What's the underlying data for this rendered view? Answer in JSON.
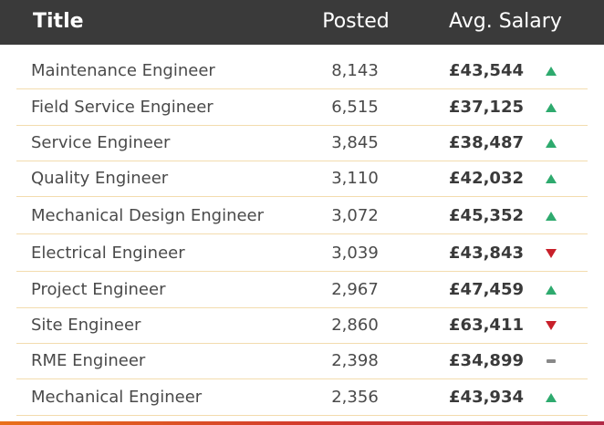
{
  "header": {
    "title": "Title",
    "posted": "Posted",
    "salary": "Avg. Salary"
  },
  "colors": {
    "up": "#2eaa6e",
    "down": "#c8202a",
    "flat": "#888888"
  },
  "rows": [
    {
      "title": "Maintenance Engineer",
      "posted": "8,143",
      "salary": "£43,544",
      "trend": "up"
    },
    {
      "title": "Field Service Engineer",
      "posted": "6,515",
      "salary": "£37,125",
      "trend": "up"
    },
    {
      "title": "Service Engineer",
      "posted": "3,845",
      "salary": "£38,487",
      "trend": "up"
    },
    {
      "title": "Quality Engineer",
      "posted": "3,110",
      "salary": "£42,032",
      "trend": "up"
    },
    {
      "title": "Mechanical Design Engineer",
      "posted": "3,072",
      "salary": "£45,352",
      "trend": "up"
    },
    {
      "title": "Electrical Engineer",
      "posted": "3,039",
      "salary": "£43,843",
      "trend": "down"
    },
    {
      "title": "Project Engineer",
      "posted": "2,967",
      "salary": "£47,459",
      "trend": "up"
    },
    {
      "title": "Site Engineer",
      "posted": "2,860",
      "salary": "£63,411",
      "trend": "down"
    },
    {
      "title": "RME Engineer",
      "posted": "2,398",
      "salary": "£34,899",
      "trend": "flat"
    },
    {
      "title": "Mechanical Engineer",
      "posted": "2,356",
      "salary": "£43,934",
      "trend": "up"
    }
  ]
}
